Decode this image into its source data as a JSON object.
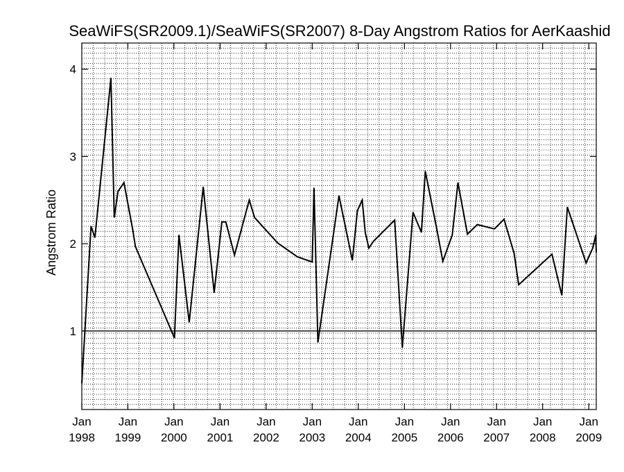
{
  "chart_data": {
    "type": "line",
    "title": "SeaWiFS(SR2009.1)/SeaWiFS(SR2007) 8-Day Angstrom Ratios for AerKaashid",
    "xlabel": "",
    "ylabel": "Angstrom Ratio",
    "xlim": [
      "1998-01-01",
      "2009-03-01"
    ],
    "ylim": [
      0.1,
      4.3
    ],
    "grid": true,
    "reference_line": 1.0,
    "y_ticks": [
      1,
      2,
      3,
      4
    ],
    "x_ticks": [
      {
        "date": "1998-01-01",
        "month": "Jan",
        "year": "1998"
      },
      {
        "date": "1999-01-01",
        "month": "Jan",
        "year": "1999"
      },
      {
        "date": "2000-01-01",
        "month": "Jan",
        "year": "2000"
      },
      {
        "date": "2001-01-01",
        "month": "Jan",
        "year": "2001"
      },
      {
        "date": "2002-01-01",
        "month": "Jan",
        "year": "2002"
      },
      {
        "date": "2003-01-01",
        "month": "Jan",
        "year": "2003"
      },
      {
        "date": "2004-01-01",
        "month": "Jan",
        "year": "2004"
      },
      {
        "date": "2005-01-01",
        "month": "Jan",
        "year": "2005"
      },
      {
        "date": "2006-01-01",
        "month": "Jan",
        "year": "2006"
      },
      {
        "date": "2007-01-01",
        "month": "Jan",
        "year": "2007"
      },
      {
        "date": "2008-01-01",
        "month": "Jan",
        "year": "2008"
      },
      {
        "date": "2009-01-01",
        "month": "Jan",
        "year": "2009"
      }
    ],
    "series": [
      {
        "x": [
          "1998-01-01",
          "1998-03-15",
          "1998-04-15",
          "1998-08-20",
          "1998-09-15",
          "1998-10-15",
          "1998-12-01",
          "1999-02-10",
          "1999-03-01",
          "2000-01-05",
          "2000-02-10",
          "2000-05-01",
          "2000-08-20",
          "2000-11-15",
          "2001-01-15",
          "2001-02-15",
          "2001-04-25",
          "2001-08-20",
          "2001-10-01",
          "2002-04-01",
          "2002-09-05",
          "2003-01-01",
          "2003-01-15",
          "2003-02-15",
          "2003-08-01",
          "2003-11-15",
          "2003-12-25",
          "2004-02-01",
          "2004-02-25",
          "2004-03-25",
          "2004-05-01",
          "2004-10-15",
          "2004-12-15",
          "2005-03-10",
          "2005-05-15",
          "2005-06-15",
          "2005-09-10",
          "2005-11-01",
          "2006-01-15",
          "2006-03-01",
          "2006-05-15",
          "2006-08-01",
          "2006-12-15",
          "2007-03-01",
          "2007-05-20",
          "2007-06-25",
          "2008-03-15",
          "2008-06-01",
          "2008-07-15",
          "2008-12-10",
          "2009-02-01",
          "2009-02-25",
          "2009-03-01"
        ],
        "values": [
          0.4,
          2.2,
          2.07,
          3.9,
          2.3,
          2.6,
          2.7,
          2.15,
          1.97,
          0.92,
          2.1,
          1.1,
          2.65,
          1.44,
          2.25,
          2.25,
          1.87,
          2.5,
          2.3,
          2.01,
          1.85,
          1.79,
          2.64,
          0.87,
          2.55,
          1.81,
          2.38,
          2.5,
          2.13,
          1.95,
          2.03,
          2.27,
          0.81,
          2.36,
          2.13,
          2.83,
          2.2,
          1.8,
          2.1,
          2.7,
          2.11,
          2.22,
          2.17,
          2.28,
          1.89,
          1.53,
          1.88,
          1.41,
          2.42,
          1.78,
          1.95,
          2.1,
          1.9
        ]
      }
    ]
  }
}
